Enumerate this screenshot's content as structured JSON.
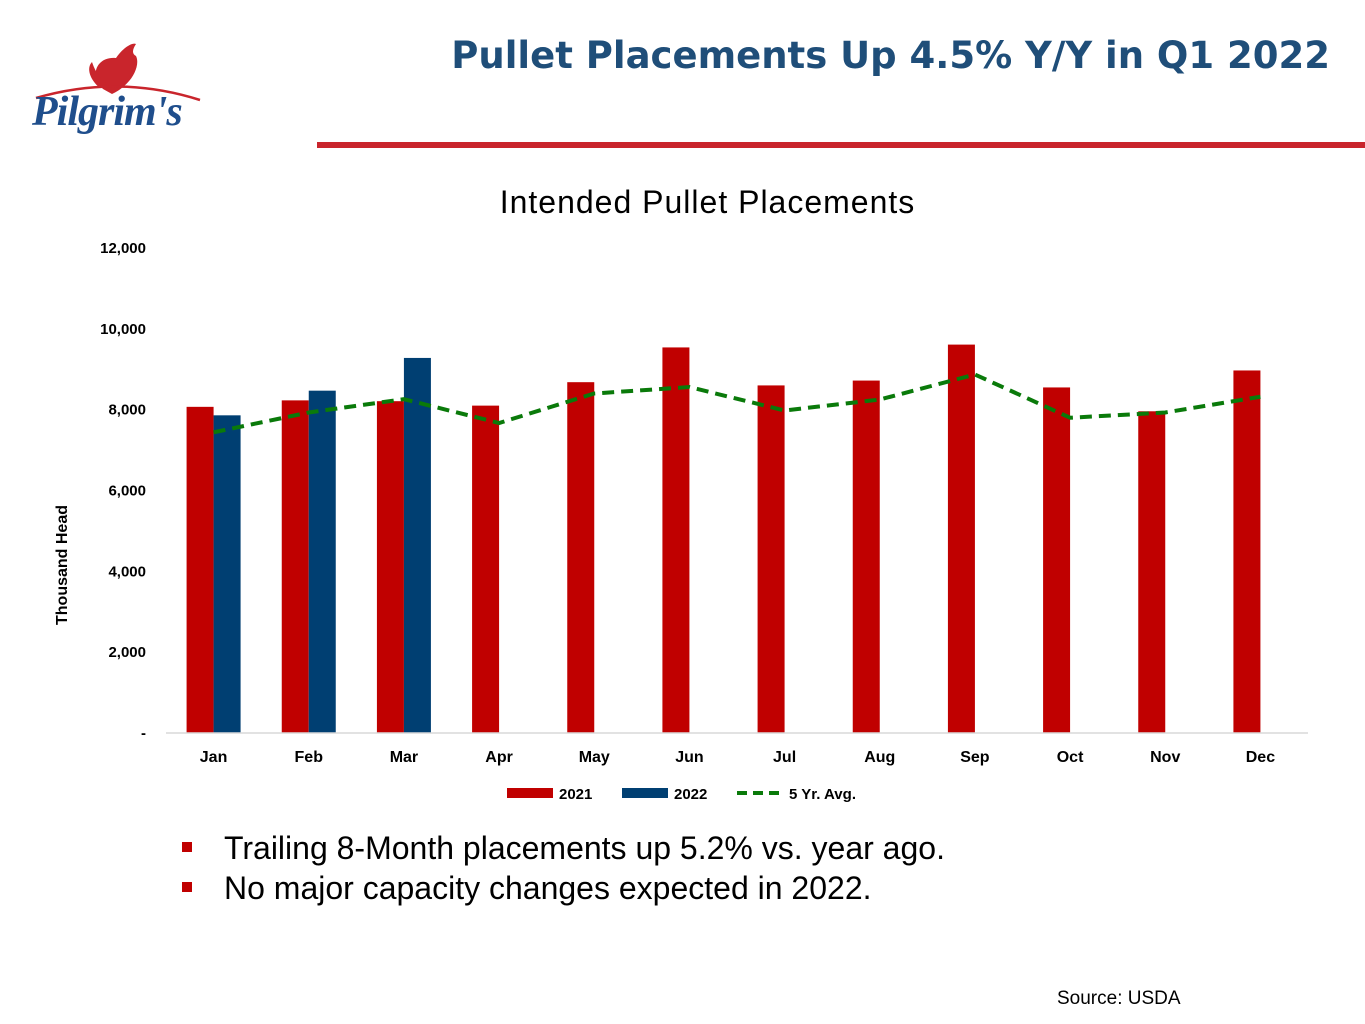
{
  "header": {
    "logo_text": "Pilgrim's",
    "title": "Pullet Placements Up 4.5% Y/Y in Q1 2022"
  },
  "colors": {
    "title": "#1f4e79",
    "rule": "#c9252c",
    "series_2021": "#c00000",
    "series_2022": "#003f72",
    "series_avg": "#0a7a0a"
  },
  "chart_data": {
    "type": "bar",
    "title": "Intended Pullet Placements",
    "xlabel": "",
    "ylabel": "Thousand Head",
    "ylim": [
      0,
      12000
    ],
    "yticks": [
      0,
      2000,
      4000,
      6000,
      8000,
      10000,
      12000
    ],
    "ytick_labels": [
      "-",
      "2,000",
      "4,000",
      "6,000",
      "8,000",
      "10,000",
      "12,000"
    ],
    "categories": [
      "Jan",
      "Feb",
      "Mar",
      "Apr",
      "May",
      "Jun",
      "Jul",
      "Aug",
      "Sep",
      "Oct",
      "Nov",
      "Dec"
    ],
    "series": [
      {
        "name": "2021",
        "type": "bar",
        "values": [
          8070,
          8230,
          8210,
          8100,
          8680,
          9540,
          8600,
          8720,
          9610,
          8550,
          7960,
          8970
        ]
      },
      {
        "name": "2022",
        "type": "bar",
        "values": [
          7860,
          8470,
          9280,
          null,
          null,
          null,
          null,
          null,
          null,
          null,
          null,
          null
        ]
      },
      {
        "name": "5 Yr. Avg.",
        "type": "line",
        "style": "dashed",
        "values": [
          7440,
          7930,
          8260,
          7670,
          8400,
          8560,
          7980,
          8250,
          8870,
          7800,
          7930,
          8320
        ]
      }
    ],
    "legend_position": "bottom",
    "grid": false
  },
  "bullets": [
    "Trailing 8-Month placements up 5.2% vs. year ago.",
    "No major capacity changes expected in 2022."
  ],
  "footer": {
    "source": "Source:  USDA"
  }
}
